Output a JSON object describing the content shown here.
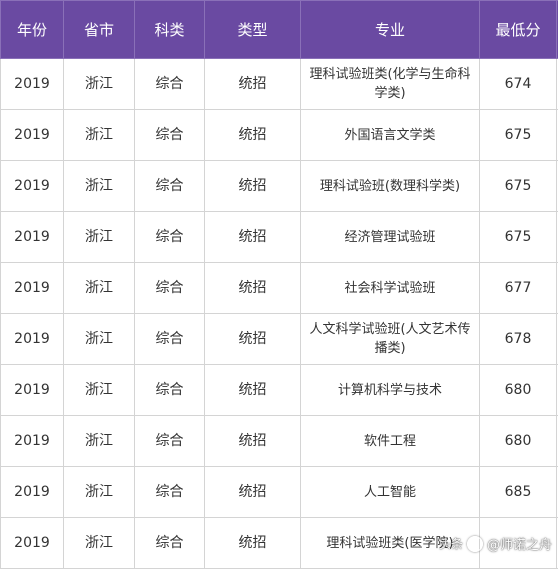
{
  "table": {
    "headers": [
      "年份",
      "省市",
      "科类",
      "类型",
      "专业",
      "最低分",
      ""
    ],
    "rows": [
      {
        "year": "2019",
        "province": "浙江",
        "subject": "综合",
        "type": "统招",
        "major": "理科试验班类(化学与生命科学类)",
        "score": "674"
      },
      {
        "year": "2019",
        "province": "浙江",
        "subject": "综合",
        "type": "统招",
        "major": "外国语言文学类",
        "score": "675"
      },
      {
        "year": "2019",
        "province": "浙江",
        "subject": "综合",
        "type": "统招",
        "major": "理科试验班(数理科学类)",
        "score": "675"
      },
      {
        "year": "2019",
        "province": "浙江",
        "subject": "综合",
        "type": "统招",
        "major": "经济管理试验班",
        "score": "675"
      },
      {
        "year": "2019",
        "province": "浙江",
        "subject": "综合",
        "type": "统招",
        "major": "社会科学试验班",
        "score": "677"
      },
      {
        "year": "2019",
        "province": "浙江",
        "subject": "综合",
        "type": "统招",
        "major": "人文科学试验班(人文艺术传播类)",
        "score": "678"
      },
      {
        "year": "2019",
        "province": "浙江",
        "subject": "综合",
        "type": "统招",
        "major": "计算机科学与技术",
        "score": "680"
      },
      {
        "year": "2019",
        "province": "浙江",
        "subject": "综合",
        "type": "统招",
        "major": "软件工程",
        "score": "680"
      },
      {
        "year": "2019",
        "province": "浙江",
        "subject": "综合",
        "type": "统招",
        "major": "人工智能",
        "score": "685"
      },
      {
        "year": "2019",
        "province": "浙江",
        "subject": "综合",
        "type": "统招",
        "major": "理科试验班类(医学院)",
        "score": ""
      }
    ]
  },
  "watermark": {
    "logo_text": "头条",
    "author": "@师诺之舟",
    "icon": "camera-icon"
  }
}
